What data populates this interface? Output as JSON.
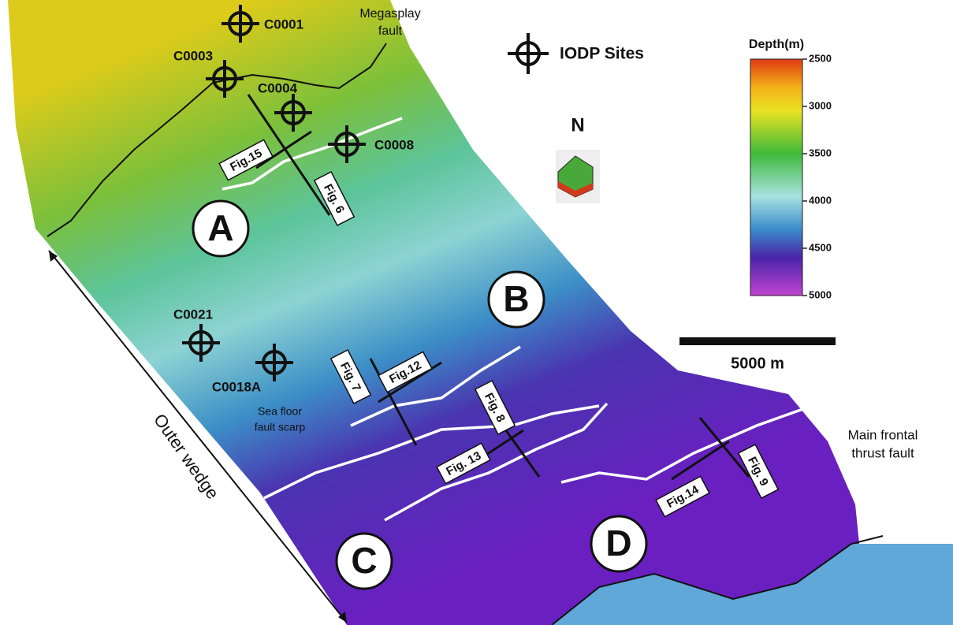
{
  "legend": {
    "label": "IODP Sites"
  },
  "north": "N",
  "colorbar": {
    "title": "Depth(m)",
    "range": [
      2500,
      5000
    ],
    "ticks": [
      2500,
      3000,
      3500,
      4000,
      4500,
      5000
    ]
  },
  "scale_bar": "5000 m",
  "annotations": {
    "megasplay": [
      "Megasplay",
      "fault"
    ],
    "scarp": [
      "Sea floor",
      "fault scarp"
    ],
    "frontal": [
      "Main frontal",
      "thrust fault"
    ],
    "outer_wedge": "Outer wedge"
  },
  "sites": [
    "C0001",
    "C0003",
    "C0004",
    "C0008",
    "C0021",
    "C0018A"
  ],
  "figures": [
    "Fig.15",
    "Fig. 6",
    "Fig. 7",
    "Fig.12",
    "Fig. 8",
    "Fig. 13",
    "Fig.14",
    "Fig. 9"
  ],
  "regions": [
    "A",
    "B",
    "C",
    "D"
  ]
}
